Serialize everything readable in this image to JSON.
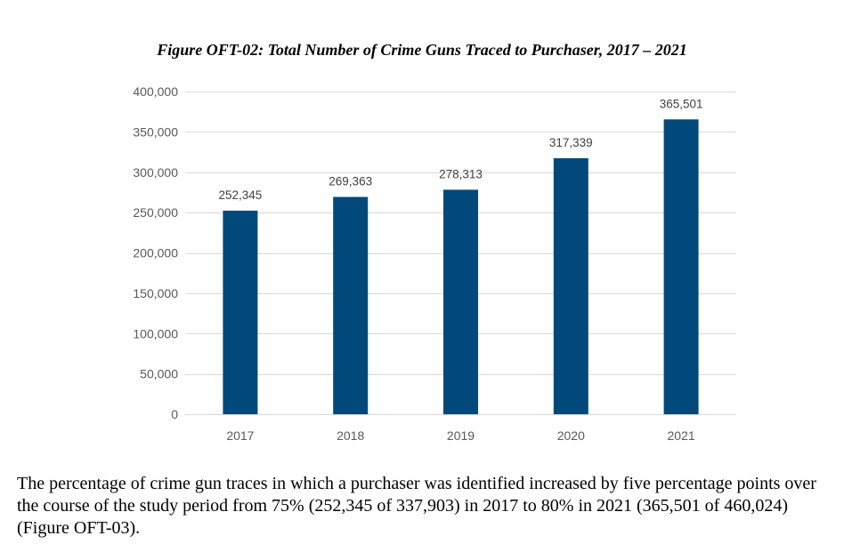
{
  "chart_data": {
    "type": "bar",
    "title": "Figure OFT-02: Total Number of Crime Guns Traced to Purchaser, 2017 – 2021",
    "categories": [
      "2017",
      "2018",
      "2019",
      "2020",
      "2021"
    ],
    "values": [
      252345,
      269363,
      278313,
      317339,
      365501
    ],
    "value_labels": [
      "252,345",
      "269,363",
      "278,313",
      "317,339",
      "365,501"
    ],
    "yticks": [
      0,
      50000,
      100000,
      150000,
      200000,
      250000,
      300000,
      350000,
      400000
    ],
    "ytick_labels": [
      "0",
      "50,000",
      "100,000",
      "150,000",
      "200,000",
      "250,000",
      "300,000",
      "350,000",
      "400,000"
    ],
    "ylim": [
      0,
      400000
    ],
    "xlabel": "",
    "ylabel": "",
    "grid": true,
    "legend": "none",
    "bar_color": "#00497A",
    "grid_color": "#D9D9D9"
  },
  "body_text": "The percentage of crime gun traces in which a purchaser was identified increased by five percentage points over the course of the study period from 75% (252,345 of 337,903) in 2017 to 80% in 2021 (365,501 of 460,024) (Figure OFT-03)."
}
